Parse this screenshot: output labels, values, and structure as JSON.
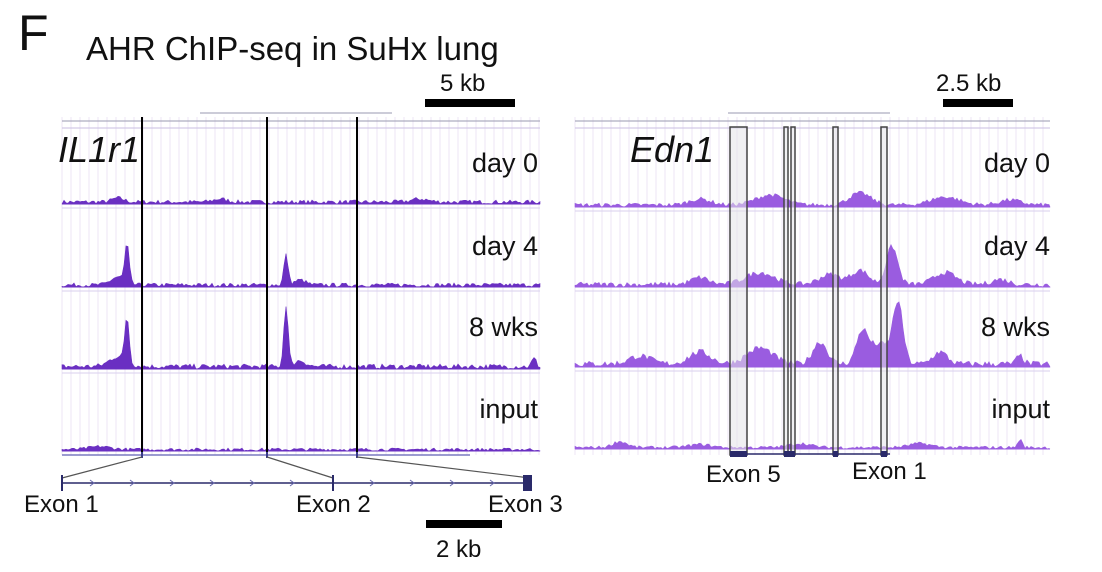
{
  "panel_letter": "F",
  "title": "AHR ChIP-seq in SuHx lung",
  "tracks": [
    "day 0",
    "day 4",
    "8 wks",
    "input"
  ],
  "left_panel": {
    "gene": "IL1r1",
    "scale_top": "5 kb",
    "scale_bottom": "2 kb",
    "exons": [
      "Exon 1",
      "Exon 2",
      "Exon 3"
    ]
  },
  "right_panel": {
    "gene": "Edn1",
    "scale_top": "2.5 kb",
    "exons": [
      "Exon 5",
      "Exon 1"
    ]
  },
  "colors": {
    "left_signal": "#6a2fc2",
    "right_signal": "#9a5ce0",
    "grid": "#e6e0f2",
    "highlight_fill": "#e8e8ec",
    "gene_model": "#2a2a6a"
  }
}
